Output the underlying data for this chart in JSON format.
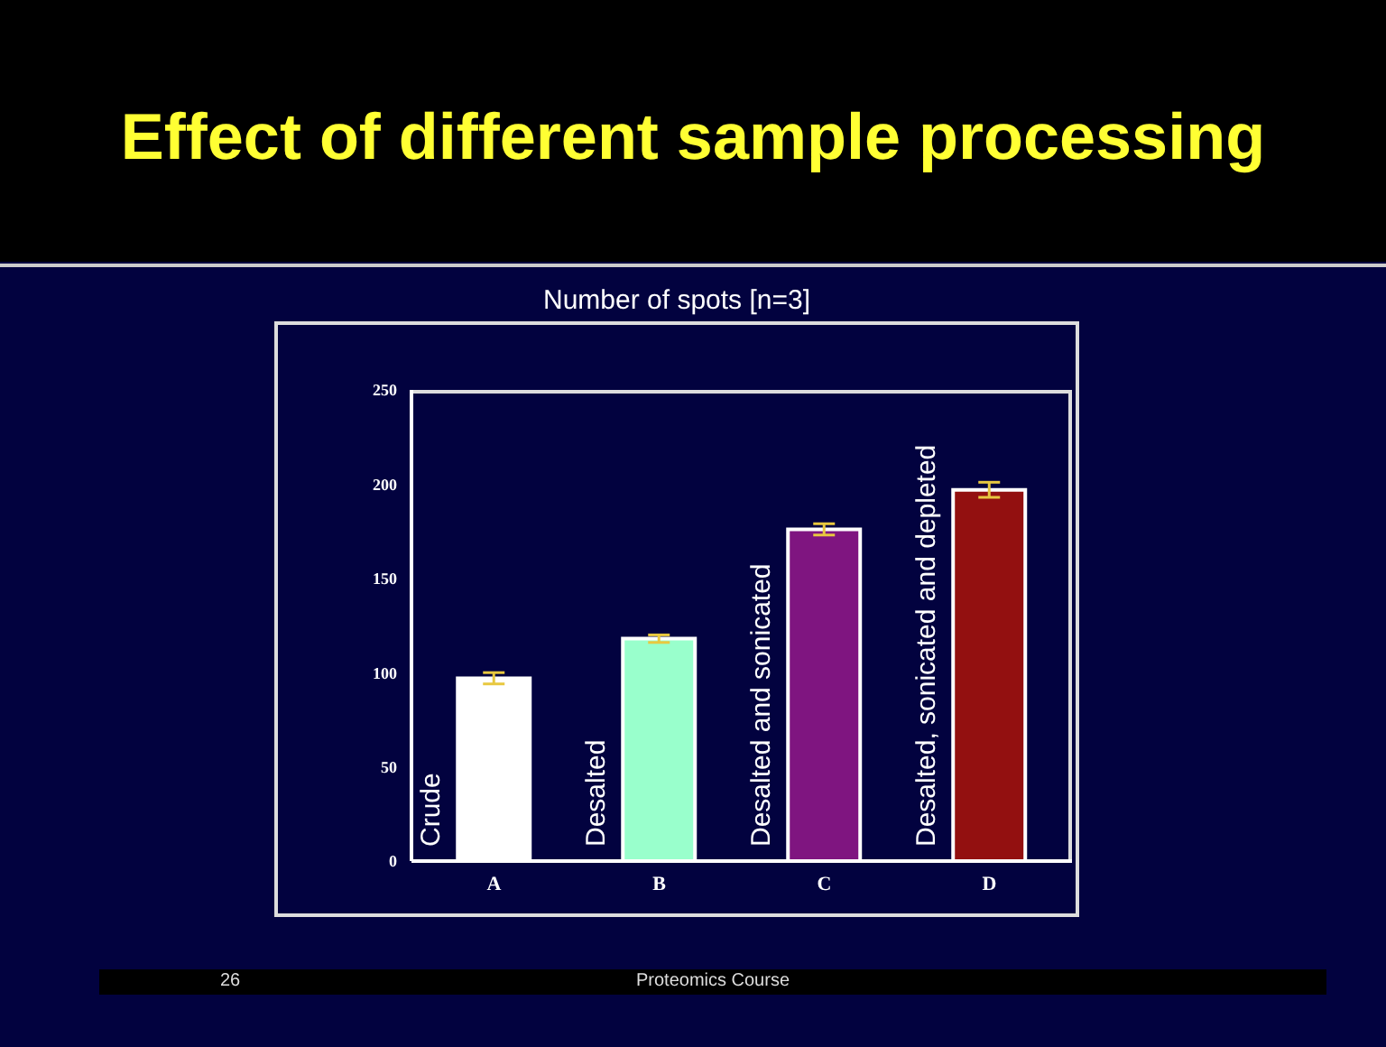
{
  "chart_data": {
    "type": "bar",
    "title": "Effect of different sample processing",
    "subtitle": "Number of spots [n=3]",
    "categories": [
      "A",
      "B",
      "C",
      "D"
    ],
    "values": [
      97,
      118,
      176,
      197
    ],
    "errors": [
      3,
      2,
      3,
      4
    ],
    "colors": [
      "#ffffff",
      "#99ffcc",
      "#7f1580",
      "#931010"
    ],
    "ylim": [
      0,
      250
    ],
    "yticks": [
      0,
      50,
      100,
      150,
      200,
      250
    ],
    "grid": false,
    "legend": false,
    "annotations": [
      "Crude",
      "Desalted",
      "Desalted and sonicated",
      "Desalted, sonicated and depleted",
      "26",
      "Proteomics Course"
    ]
  }
}
